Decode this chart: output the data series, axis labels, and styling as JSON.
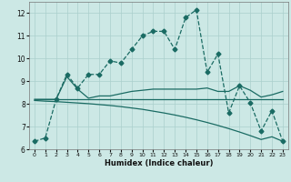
{
  "title": "",
  "xlabel": "Humidex (Indice chaleur)",
  "xlim": [
    -0.5,
    23.5
  ],
  "ylim": [
    6,
    12.5
  ],
  "yticks": [
    6,
    7,
    8,
    9,
    10,
    11,
    12
  ],
  "xticks": [
    0,
    1,
    2,
    3,
    4,
    5,
    6,
    7,
    8,
    9,
    10,
    11,
    12,
    13,
    14,
    15,
    16,
    17,
    18,
    19,
    20,
    21,
    22,
    23
  ],
  "background_color": "#cce8e5",
  "grid_color": "#aacfcc",
  "line_color": "#1a6b63",
  "series": [
    {
      "x": [
        0,
        1,
        2,
        3,
        4,
        5,
        6,
        7,
        8,
        9,
        10,
        11,
        12,
        13,
        14,
        15,
        16,
        17,
        18,
        19,
        20,
        21,
        22,
        23
      ],
      "y": [
        6.35,
        6.5,
        8.2,
        9.3,
        8.7,
        9.3,
        9.3,
        9.9,
        9.8,
        10.4,
        11.0,
        11.2,
        11.2,
        10.4,
        11.8,
        12.15,
        9.4,
        10.2,
        7.6,
        8.8,
        8.05,
        6.8,
        7.7,
        6.35
      ],
      "marker": "D",
      "markersize": 2.5,
      "linestyle": "--",
      "linewidth": 0.9
    },
    {
      "x": [
        0,
        2,
        3,
        4,
        5,
        6,
        7,
        8,
        9,
        10,
        11,
        12,
        13,
        14,
        15,
        16,
        17,
        18,
        19,
        20,
        21,
        22,
        23
      ],
      "y": [
        8.2,
        8.2,
        9.2,
        8.65,
        8.25,
        8.35,
        8.35,
        8.45,
        8.55,
        8.6,
        8.65,
        8.65,
        8.65,
        8.65,
        8.65,
        8.7,
        8.55,
        8.55,
        8.8,
        8.6,
        8.3,
        8.4,
        8.55
      ],
      "marker": null,
      "markersize": 0,
      "linestyle": "-",
      "linewidth": 0.9
    },
    {
      "x": [
        0,
        1,
        2,
        3,
        4,
        5,
        6,
        7,
        8,
        9,
        10,
        11,
        12,
        13,
        14,
        15,
        16,
        17,
        18,
        19,
        20,
        21,
        22,
        23
      ],
      "y": [
        8.2,
        8.2,
        8.2,
        8.2,
        8.2,
        8.2,
        8.2,
        8.2,
        8.2,
        8.2,
        8.2,
        8.2,
        8.2,
        8.2,
        8.2,
        8.2,
        8.2,
        8.2,
        8.2,
        8.2,
        8.2,
        8.2,
        8.2,
        8.2
      ],
      "marker": null,
      "markersize": 0,
      "linestyle": "-",
      "linewidth": 0.9
    },
    {
      "x": [
        0,
        1,
        2,
        3,
        4,
        5,
        6,
        7,
        8,
        9,
        10,
        11,
        12,
        13,
        14,
        15,
        16,
        17,
        18,
        19,
        20,
        21,
        22,
        23
      ],
      "y": [
        8.15,
        8.12,
        8.1,
        8.07,
        8.04,
        8.01,
        7.97,
        7.93,
        7.88,
        7.82,
        7.76,
        7.68,
        7.6,
        7.51,
        7.41,
        7.3,
        7.18,
        7.05,
        6.91,
        6.76,
        6.6,
        6.43,
        6.55,
        6.35
      ],
      "marker": null,
      "markersize": 0,
      "linestyle": "-",
      "linewidth": 0.9
    }
  ]
}
